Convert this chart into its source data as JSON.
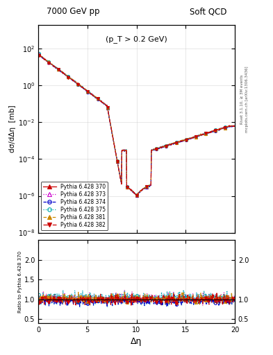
{
  "title_left": "7000 GeV pp",
  "title_right": "Soft QCD",
  "annotation": "(p_T > 0.2 GeV)",
  "ylabel_main": "dσ/dΔη  [mb]",
  "ylabel_ratio": "Ratio to Pythia 6.428 370",
  "xlabel": "Δη",
  "right_label_top": "Rivet 3.1.10, ≥ 3M events",
  "right_label_bottom": "mcplots.cern.ch [arXiv:1306.3436]",
  "xlim": [
    0,
    20
  ],
  "ylim_main": [
    1e-08,
    2000.0
  ],
  "ylim_ratio": [
    0.4,
    2.5
  ],
  "series": [
    {
      "label": "Pythia 6.428 370",
      "color": "#cc0000",
      "marker": "^",
      "linestyle": "-",
      "filled": true,
      "tune": 1.0
    },
    {
      "label": "Pythia 6.428 373",
      "color": "#cc00cc",
      "marker": "^",
      "linestyle": ":",
      "filled": false,
      "tune": 1.02
    },
    {
      "label": "Pythia 6.428 374",
      "color": "#0000cc",
      "marker": "o",
      "linestyle": "--",
      "filled": false,
      "tune": 0.95
    },
    {
      "label": "Pythia 6.428 375",
      "color": "#00aaaa",
      "marker": "o",
      "linestyle": ":",
      "filled": false,
      "tune": 1.05
    },
    {
      "label": "Pythia 6.428 381",
      "color": "#cc8800",
      "marker": "^",
      "linestyle": "--",
      "filled": true,
      "tune": 1.01
    },
    {
      "label": "Pythia 6.428 382",
      "color": "#cc0000",
      "marker": "v",
      "linestyle": "-.",
      "filled": true,
      "tune": 0.99
    }
  ],
  "band_colors": [
    "#ffff99",
    "#99ffcc",
    "#aaccff",
    "#ffcc99",
    "#ffaacc"
  ]
}
